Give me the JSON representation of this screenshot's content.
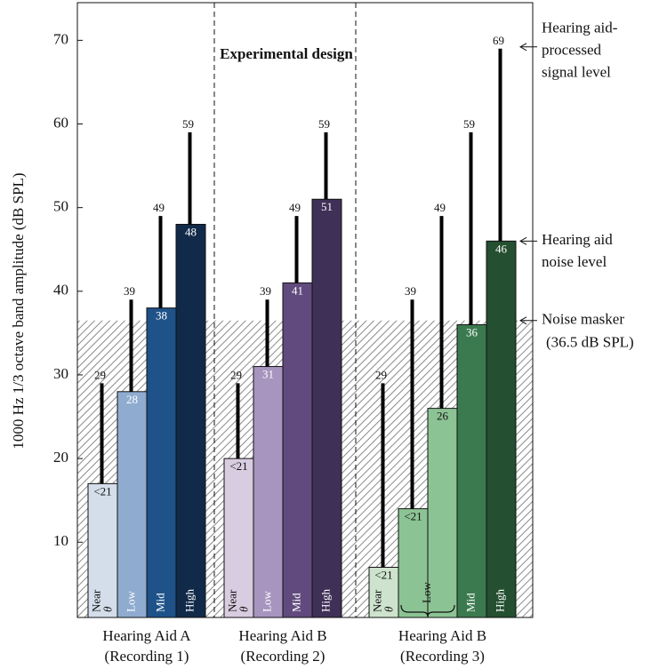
{
  "chart_data": {
    "type": "bar",
    "title": "Experimental design",
    "y_label": "1000 Hz 1/3 octave band amplitude (dB SPL)",
    "ylim": [
      1,
      74.5
    ],
    "yticks": [
      10,
      20,
      30,
      40,
      50,
      60,
      70
    ],
    "masker_level": 36.5,
    "groups": [
      {
        "label": [
          "Hearing Aid A",
          "(Recording 1)"
        ],
        "categories": [
          [
            "Near",
            "θ"
          ],
          "Low",
          "Mid",
          "High"
        ],
        "colors": [
          "#d3deea",
          "#8fabd0",
          "#1e5289",
          "#112a4a"
        ],
        "noise": [
          17,
          28,
          38,
          48
        ],
        "noise_labels": [
          "<21",
          "28",
          "38",
          "48"
        ],
        "signal": [
          29,
          39,
          49,
          59
        ]
      },
      {
        "label": [
          "Hearing Aid B",
          "(Recording 2)"
        ],
        "categories": [
          [
            "Near",
            "θ"
          ],
          "Low",
          "Mid",
          "High"
        ],
        "colors": [
          "#d8cce0",
          "#a795bf",
          "#614a7d",
          "#3e3057"
        ],
        "noise": [
          20,
          31,
          41,
          51
        ],
        "noise_labels": [
          "<21",
          "31",
          "41",
          "51"
        ],
        "signal": [
          29,
          39,
          49,
          59
        ]
      },
      {
        "label": [
          "Hearing Aid B",
          "(Recording 3)"
        ],
        "categories": [
          [
            "Near",
            "θ"
          ],
          null,
          null,
          "Mid",
          "High"
        ],
        "span_label": "Low",
        "colors": [
          "#cde3cd",
          "#8cc394",
          "#8cc394",
          "#3b7a4e",
          "#244f30"
        ],
        "noise": [
          7,
          14,
          26,
          36,
          46
        ],
        "noise_labels": [
          "<21",
          "<21",
          "26",
          "36",
          "46"
        ],
        "signal": [
          29,
          39,
          49,
          59,
          69
        ]
      }
    ],
    "annotations": {
      "signal": [
        "Hearing aid-",
        "processed",
        "signal level"
      ],
      "noise": [
        "Hearing aid",
        "noise level"
      ],
      "masker": [
        "Noise masker",
        "(36.5 dB SPL)"
      ]
    }
  }
}
